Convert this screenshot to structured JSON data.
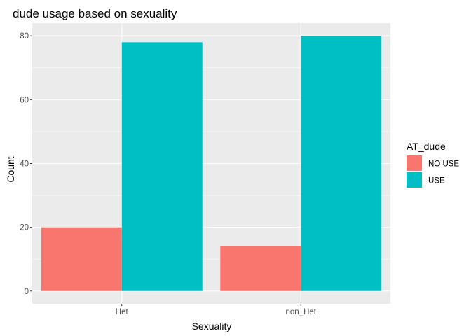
{
  "chart_data": {
    "type": "bar",
    "title": "dude usage based on sexuality",
    "xlabel": "Sexuality",
    "ylabel": "Count",
    "categories": [
      "Het",
      "non_Het"
    ],
    "series": [
      {
        "name": "NO USE",
        "values": [
          20,
          14
        ],
        "color": "#F8766D"
      },
      {
        "name": "USE",
        "values": [
          78,
          80
        ],
        "color": "#00BFC4"
      }
    ],
    "ylim": [
      -4,
      84
    ],
    "yticks": [
      "0",
      "20",
      "40",
      "60",
      "80"
    ],
    "legend": {
      "title": "AT_dude",
      "position": "right"
    },
    "grid": true,
    "panel_background": "#EBEBEB",
    "grid_color": "#FFFFFF"
  }
}
